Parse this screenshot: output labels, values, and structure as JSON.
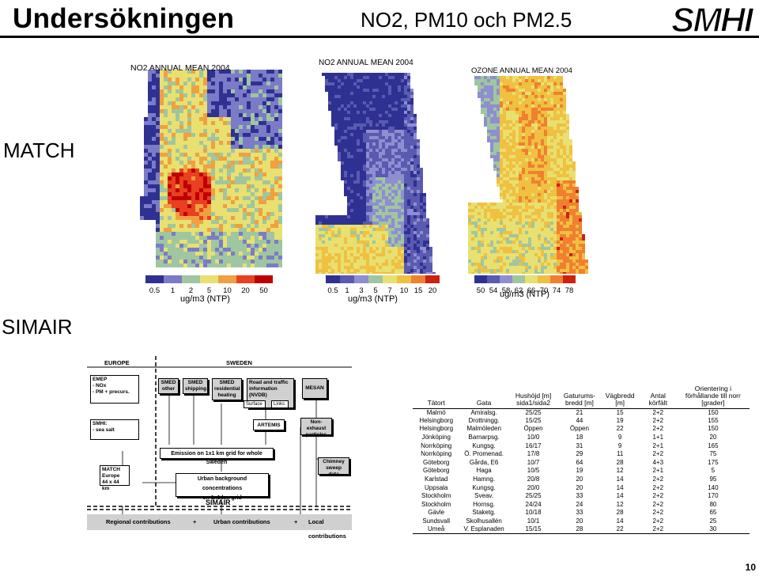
{
  "header": {
    "title": "Undersökningen",
    "subtitle": "NO2, PM10 och PM2.5",
    "logo_text": "SMHI"
  },
  "sections": {
    "match_label": "MATCH",
    "simair_label": "SIMAIR"
  },
  "maps": [
    {
      "caption": "NO2 ANNUAL MEAN 2004",
      "unit": "ug/m3 (NTP)",
      "ticks": [
        "0.5",
        "1",
        "2",
        "5",
        "10",
        "20",
        "50"
      ],
      "colors": [
        "#2e3192",
        "#7b7bc8",
        "#9fc6a0",
        "#e8e070",
        "#f0a040",
        "#e84020",
        "#c00000"
      ]
    },
    {
      "caption": "NO2 ANNUAL MEAN 2004",
      "unit": "ug/m3 (NTP)",
      "ticks": [
        "0.5",
        "1",
        "3",
        "5",
        "7",
        "10",
        "15",
        "20"
      ],
      "colors": [
        "#2e3192",
        "#5a5ab0",
        "#8e8ed0",
        "#9fc6a0",
        "#e8e070",
        "#f0c040",
        "#f08030",
        "#d02010"
      ]
    },
    {
      "caption": "OZONE ANNUAL MEAN 2004",
      "unit": "ug/m3 (NTP)",
      "ticks": [
        "50",
        "54",
        "58",
        "62",
        "66",
        "70",
        "74",
        "78"
      ],
      "colors": [
        "#2e3192",
        "#5a5ab0",
        "#8e8ed0",
        "#9fc6a0",
        "#e8e070",
        "#f0c040",
        "#f08030",
        "#d02010"
      ]
    }
  ],
  "flowchart": {
    "europe": "EUROPE",
    "sweden": "SWEDEN",
    "emep_title": "EMEP",
    "emep_items": [
      "- NOx",
      "- PM + precurs."
    ],
    "smhi_title": "SMHI:",
    "smhi_items": [
      "- sea salt"
    ],
    "match_box": [
      "MATCH",
      "Europe",
      "44 x 44 km"
    ],
    "smed_other": [
      "SMED",
      "other"
    ],
    "smed_shipping": [
      "SMED",
      "shipping"
    ],
    "smed_residential": [
      "SMED",
      "residential",
      "heating"
    ],
    "road_traffic": [
      "Road and traffic",
      "information (NVDB)"
    ],
    "surface": "Surface",
    "links": "Links",
    "mesan": "MESAN",
    "artemis": "ARTEMIS",
    "non_exhaust": [
      "Non-exhaust",
      "particles"
    ],
    "emission_grid": "Emission on 1x1 km grid for whole Sweden",
    "chimney": [
      "Chimney sweep",
      "data"
    ],
    "urban_bg": [
      "Urban background concentrations",
      "on 1x1 km grid"
    ],
    "simair": "SIMAIR",
    "bottom_regional": "Regional contributions",
    "bottom_plus1": "+",
    "bottom_urban": "Urban contributions",
    "bottom_plus2": "+",
    "bottom_local": "Local contributions"
  },
  "table": {
    "headers": [
      "Tätort",
      "Gata",
      "Hushöjd [m] sida1/sida2",
      "Gaturums-bredd [m]",
      "Vägbredd [m]",
      "Antal körfält",
      "Orientering i förhållande till norr [grader]"
    ],
    "rows": [
      [
        "Malmö",
        "Amiralsg.",
        "25/25",
        "21",
        "15",
        "2+2",
        "150"
      ],
      [
        "Helsingborg",
        "Drottningg.",
        "15/25",
        "44",
        "19",
        "2+2",
        "155"
      ],
      [
        "Helsingborg",
        "Malmöleden",
        "Öppen",
        "Öppen",
        "22",
        "2+2",
        "150"
      ],
      [
        "Jönköping",
        "Barnarpsg.",
        "10/0",
        "18",
        "9",
        "1+1",
        "20"
      ],
      [
        "Norrköping",
        "Kungsg.",
        "16/17",
        "31",
        "9",
        "2+1",
        "165"
      ],
      [
        "Norrköping",
        "Ö. Promenad.",
        "17/8",
        "29",
        "11",
        "2+2",
        "75"
      ],
      [
        "Göteborg",
        "Gårda, E6",
        "10/7",
        "64",
        "28",
        "4+3",
        "175"
      ],
      [
        "Göteborg",
        "Haga",
        "10/5",
        "19",
        "12",
        "2+1",
        "5"
      ],
      [
        "Karlstad",
        "Hamng.",
        "20/8",
        "20",
        "14",
        "2+2",
        "95"
      ],
      [
        "Uppsala",
        "Kungsg.",
        "20/0",
        "20",
        "14",
        "2+2",
        "140"
      ],
      [
        "Stockholm",
        "Sveav.",
        "25/25",
        "33",
        "14",
        "2+2",
        "170"
      ],
      [
        "Stockholm",
        "Hornsg.",
        "24/24",
        "24",
        "12",
        "2+2",
        "80"
      ],
      [
        "Gävle",
        "Staketg.",
        "10/18",
        "33",
        "28",
        "2+2",
        "65"
      ],
      [
        "Sundsvall",
        "Skolhusallén",
        "10/1",
        "20",
        "14",
        "2+2",
        "25"
      ],
      [
        "Umeå",
        "V. Esplanaden",
        "15/15",
        "28",
        "22",
        "2+2",
        "30"
      ]
    ]
  },
  "page_number": "10"
}
